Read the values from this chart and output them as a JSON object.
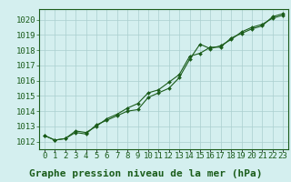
{
  "x": [
    0,
    1,
    2,
    3,
    4,
    5,
    6,
    7,
    8,
    9,
    10,
    11,
    12,
    13,
    14,
    15,
    16,
    17,
    18,
    19,
    20,
    21,
    22,
    23
  ],
  "line1": [
    1012.4,
    1012.1,
    1012.2,
    1012.6,
    1012.5,
    1013.1,
    1013.4,
    1013.7,
    1014.0,
    1014.1,
    1014.9,
    1015.2,
    1015.5,
    1016.2,
    1017.4,
    1018.4,
    1018.1,
    1018.3,
    1018.7,
    1019.2,
    1019.5,
    1019.7,
    1020.1,
    1020.3
  ],
  "line2": [
    1012.4,
    1012.1,
    1012.2,
    1012.7,
    1012.6,
    1013.0,
    1013.5,
    1013.8,
    1014.2,
    1014.5,
    1015.2,
    1015.4,
    1015.9,
    1016.4,
    1017.6,
    1017.8,
    1018.2,
    1018.2,
    1018.8,
    1019.1,
    1019.4,
    1019.6,
    1020.2,
    1020.4
  ],
  "line_color": "#1a5c1a",
  "bg_color": "#d4efef",
  "grid_color": "#aacece",
  "bottom_bar_color": "#2a6a2a",
  "title": "Graphe pression niveau de la mer (hPa)",
  "xlabel_ticks": [
    "0",
    "1",
    "2",
    "3",
    "4",
    "5",
    "6",
    "7",
    "8",
    "9",
    "10",
    "11",
    "12",
    "13",
    "14",
    "15",
    "16",
    "17",
    "18",
    "19",
    "20",
    "21",
    "22",
    "23"
  ],
  "ylim": [
    1011.5,
    1020.7
  ],
  "yticks": [
    1012,
    1013,
    1014,
    1015,
    1016,
    1017,
    1018,
    1019,
    1020
  ],
  "tick_fontsize": 6.5,
  "title_fontsize": 8
}
